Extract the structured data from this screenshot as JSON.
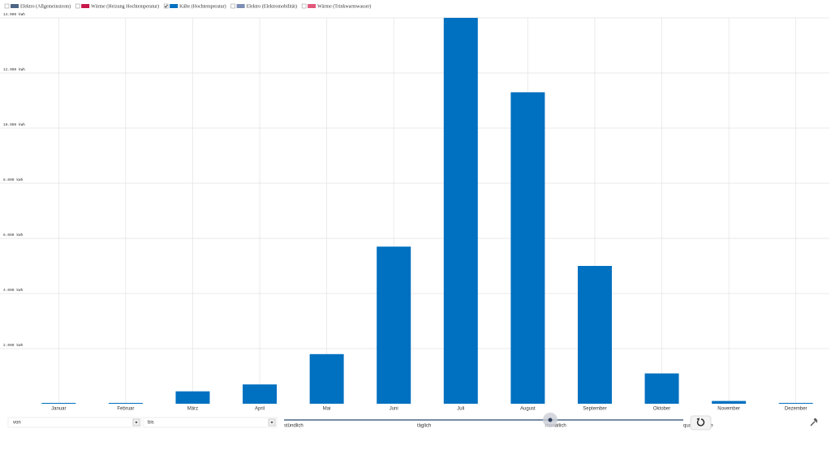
{
  "chart_data": {
    "type": "bar",
    "legend": [
      {
        "label": "Elektro (Allgemeinstrom)",
        "color": "#4d6585",
        "checked": false
      },
      {
        "label": "Wärme (Heizung Hochtemperatur)",
        "color": "#c8174a",
        "checked": false
      },
      {
        "label": "Kälte (Hochtemperatur)",
        "color": "#0070c0",
        "checked": true
      },
      {
        "label": "Elektro (Elektromobilität)",
        "color": "#7b8db3",
        "checked": false
      },
      {
        "label": "Wärme (Trinkwarmwasser)",
        "color": "#e0577a",
        "checked": false
      }
    ],
    "categories": [
      "Januar",
      "Februar",
      "März",
      "April",
      "Mai",
      "Juni",
      "Juli",
      "August",
      "September",
      "Oktober",
      "November",
      "Dezember"
    ],
    "values": [
      30,
      30,
      450,
      700,
      1800,
      5700,
      14000,
      11300,
      5000,
      1100,
      100,
      30
    ],
    "color": "#0070c0",
    "ylim": [
      0,
      14000
    ],
    "yticks": [
      {
        "value": 2000,
        "label": "2.000 kWh"
      },
      {
        "value": 4000,
        "label": "4.000 kWh"
      },
      {
        "value": 6000,
        "label": "6.000 kWh"
      },
      {
        "value": 8000,
        "label": "8.000 kWh"
      },
      {
        "value": 10000,
        "label": "10.000 kWh"
      },
      {
        "value": 12000,
        "label": "12.000 kWh"
      },
      {
        "value": 14000,
        "label": "14.000 kWh"
      }
    ],
    "grid": true
  },
  "controls": {
    "from_placeholder": "von",
    "to_placeholder": "bis",
    "resolution_options": [
      "stündlich",
      "täglich",
      "monatlich",
      "quartalsweise"
    ],
    "selected_resolution": 2
  }
}
